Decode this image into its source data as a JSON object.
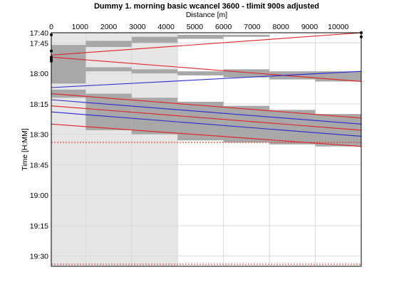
{
  "chart_data": {
    "type": "line",
    "title": "Dummy 1. morning basic wcancel 3600 - tlimit 900s adjusted",
    "xlabel": "Distance [m]",
    "ylabel": "Time [H:MM]",
    "x_axis_position": "top",
    "y_axis_inverted": true,
    "xlim": [
      0,
      10800
    ],
    "ylim": [
      "17:40",
      "19:35"
    ],
    "x_ticks": [
      0,
      1000,
      2000,
      3000,
      4000,
      5000,
      6000,
      7000,
      8000,
      9000,
      10000
    ],
    "y_ticks": [
      "17:40",
      "17:45",
      "18:00",
      "18:15",
      "18:30",
      "18:45",
      "19:00",
      "19:15",
      "19:30"
    ],
    "y_tick_labels": [
      "17:40",
      "17:45",
      "18:00",
      "18:15",
      "18:30",
      "18:45",
      "19:00",
      "19:15",
      "19:30"
    ],
    "grid": true,
    "colors": {
      "red_train": "#e02020",
      "blue_train": "#2a2ad0",
      "blocks": "#a8a8a8",
      "shaded_region": "#e6e6e6",
      "limit_line": "#e02020",
      "markers": "#000000"
    },
    "shaded_region": {
      "x_range": [
        0,
        4400
      ]
    },
    "station_x": [
      0,
      1200,
      2800,
      4400,
      6000,
      7600,
      9200,
      10800
    ],
    "horizontal_limits": [
      "18:34",
      "19:34"
    ],
    "series": [
      {
        "color": "red",
        "points": [
          [
            0,
            "17:51"
          ],
          [
            10800,
            "17:40"
          ]
        ]
      },
      {
        "color": "red",
        "points": [
          [
            0,
            "17:52"
          ],
          [
            10800,
            "18:04"
          ]
        ]
      },
      {
        "color": "blue",
        "points": [
          [
            0,
            "18:07"
          ],
          [
            10800,
            "17:59"
          ]
        ]
      },
      {
        "color": "red",
        "points": [
          [
            0,
            "18:10"
          ],
          [
            10800,
            "18:22"
          ]
        ]
      },
      {
        "color": "blue",
        "points": [
          [
            0,
            "18:13"
          ],
          [
            10800,
            "18:25"
          ]
        ]
      },
      {
        "color": "red",
        "points": [
          [
            0,
            "18:16"
          ],
          [
            10800,
            "18:28"
          ]
        ]
      },
      {
        "color": "blue",
        "points": [
          [
            0,
            "18:19"
          ],
          [
            10800,
            "18:31"
          ]
        ]
      },
      {
        "color": "red",
        "points": [
          [
            0,
            "18:25"
          ],
          [
            10800,
            "18:36"
          ]
        ]
      }
    ],
    "blocks": [
      {
        "x": [
          0,
          1200
        ],
        "t": [
          "17:46",
          "17:53"
        ]
      },
      {
        "x": [
          1200,
          2800
        ],
        "t": [
          "17:44",
          "17:47"
        ]
      },
      {
        "x": [
          2800,
          4400
        ],
        "t": [
          "17:42",
          "17:45"
        ]
      },
      {
        "x": [
          4400,
          6000
        ],
        "t": [
          "17:41",
          "17:43"
        ]
      },
      {
        "x": [
          6000,
          7600
        ],
        "t": [
          "17:41",
          "17:42"
        ]
      },
      {
        "x": [
          0,
          1200
        ],
        "t": [
          "17:51",
          "18:05"
        ]
      },
      {
        "x": [
          1200,
          2800
        ],
        "t": [
          "17:57",
          "17:59"
        ]
      },
      {
        "x": [
          2800,
          4400
        ],
        "t": [
          "17:58",
          "18:00"
        ]
      },
      {
        "x": [
          4400,
          6000
        ],
        "t": [
          "17:59",
          "18:01"
        ]
      },
      {
        "x": [
          6000,
          7600
        ],
        "t": [
          "17:58",
          "18:02"
        ]
      },
      {
        "x": [
          7600,
          9200
        ],
        "t": [
          "17:59",
          "18:03"
        ]
      },
      {
        "x": [
          9200,
          10800
        ],
        "t": [
          "17:59",
          "18:04"
        ]
      },
      {
        "x": [
          0,
          1200
        ],
        "t": [
          "18:08",
          "18:12"
        ]
      },
      {
        "x": [
          1200,
          2800
        ],
        "t": [
          "18:10",
          "18:28"
        ]
      },
      {
        "x": [
          2800,
          4400
        ],
        "t": [
          "18:12",
          "18:30"
        ]
      },
      {
        "x": [
          4400,
          6000
        ],
        "t": [
          "18:14",
          "18:33"
        ]
      },
      {
        "x": [
          6000,
          7600
        ],
        "t": [
          "18:16",
          "18:34"
        ]
      },
      {
        "x": [
          7600,
          9200
        ],
        "t": [
          "18:18",
          "18:35"
        ]
      },
      {
        "x": [
          9200,
          10800
        ],
        "t": [
          "18:20",
          "18:36"
        ]
      }
    ],
    "markers": [
      [
        0,
        "17:41"
      ],
      [
        0,
        "17:49"
      ],
      [
        0,
        "17:52"
      ],
      [
        0,
        "17:53"
      ],
      [
        0,
        "17:54"
      ],
      [
        10800,
        "17:40"
      ],
      [
        10800,
        "17:42"
      ]
    ]
  }
}
